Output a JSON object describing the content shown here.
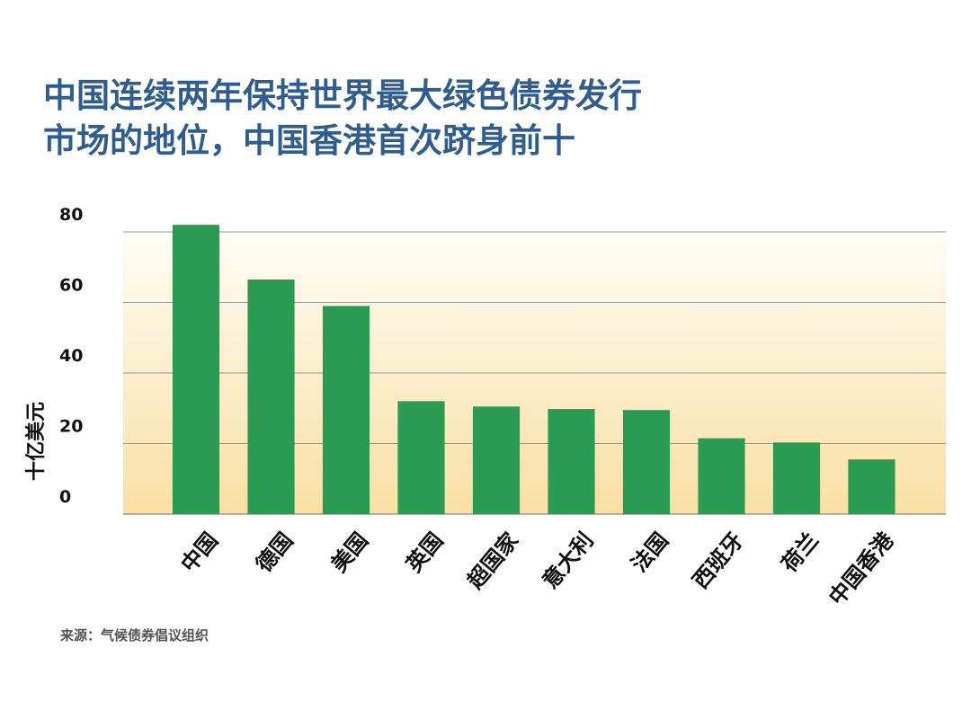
{
  "title_line1": "中国连续两年保持世界最大绿色债券发行",
  "title_line2": "市场的地位，中国香港首次跻身前十",
  "source": "来源：气候债券倡议组织",
  "colors": {
    "title": "#2f5d8f",
    "bar": "#2a9b53",
    "gradient_top": "#fffdf6",
    "gradient_bottom": "#f9dfa3",
    "grid": "#9a9a9a"
  },
  "chart_data": {
    "type": "bar",
    "title": "中国连续两年保持世界最大绿色债券发行市场的地位，中国香港首次跻身前十",
    "xlabel": "",
    "ylabel": "十亿美元",
    "categories": [
      "中国",
      "德国",
      "美国",
      "英国",
      "超国家",
      "意大利",
      "法国",
      "西班牙",
      "荷兰",
      "中国香港"
    ],
    "values": [
      82,
      66.5,
      59,
      32,
      30.5,
      29.8,
      29.5,
      21.5,
      20.3,
      15.5
    ],
    "ylim": [
      0,
      80
    ],
    "yticks": [
      0,
      20,
      40,
      60,
      80
    ],
    "grid": true,
    "legend": "none"
  }
}
